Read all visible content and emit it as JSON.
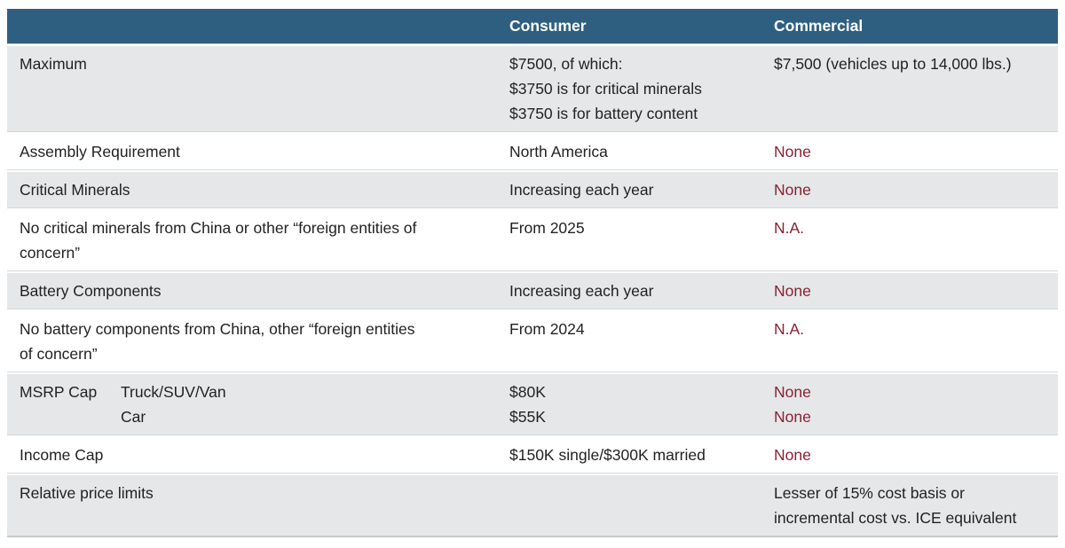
{
  "table": {
    "header": {
      "consumer": "Consumer",
      "commercial": "Commercial"
    },
    "colors": {
      "header_bg": "#2f5f80",
      "header_text": "#ffffff",
      "shaded_row": "#e5e7e9",
      "body_text": "#222222",
      "highlight_text": "#8b2133"
    },
    "rows": [
      {
        "label": "Maximum",
        "consumer": "$7500, of which:\n$3750 is for critical minerals\n$3750 is for battery content",
        "commercial": "$7,500 (vehicles up to 14,000 lbs.)",
        "commercial_style": "dark"
      },
      {
        "label": "Assembly Requirement",
        "consumer": "North America",
        "commercial": "None",
        "commercial_style": "red"
      },
      {
        "label": "Critical Minerals",
        "consumer": "Increasing each year",
        "commercial": "None",
        "commercial_style": "red"
      },
      {
        "label": "No critical minerals from China or other “foreign entities of\nconcern”",
        "consumer": "From 2025",
        "commercial": "N.A.",
        "commercial_style": "red"
      },
      {
        "label": "Battery Components",
        "consumer": "Increasing each year",
        "commercial": "None",
        "commercial_style": "red"
      },
      {
        "label": "No battery components from China, other “foreign entities\nof concern”",
        "consumer": "From 2024",
        "commercial": "N.A.",
        "commercial_style": "red"
      },
      {
        "label": "MSRP Cap",
        "label_sub": "Truck/SUV/Van\nCar",
        "consumer": "$80K\n$55K",
        "commercial": "None\nNone",
        "commercial_style": "red"
      },
      {
        "label": "Income Cap",
        "consumer": "$150K single/$300K married",
        "commercial": "None",
        "commercial_style": "red"
      },
      {
        "label": "Relative price limits",
        "consumer": "",
        "commercial": "Lesser of 15% cost basis or\nincremental cost vs. ICE equivalent",
        "commercial_style": "dark"
      }
    ]
  },
  "chart_data": {
    "type": "table",
    "title": "",
    "columns": [
      "",
      "Consumer",
      "Commercial"
    ],
    "rows": [
      [
        "Maximum",
        "$7500, of which: $3750 is for critical minerals / $3750 is for battery content",
        "$7,500 (vehicles up to 14,000 lbs.)"
      ],
      [
        "Assembly Requirement",
        "North America",
        "None"
      ],
      [
        "Critical Minerals",
        "Increasing each year",
        "None"
      ],
      [
        "No critical minerals from China or other “foreign entities of concern”",
        "From 2025",
        "N.A."
      ],
      [
        "Battery Components",
        "Increasing each year",
        "None"
      ],
      [
        "No battery components from China, other “foreign entities of concern”",
        "From 2024",
        "N.A."
      ],
      [
        "MSRP Cap — Truck/SUV/Van: $80K / Car: $55K",
        "$80K / $55K",
        "None / None"
      ],
      [
        "Income Cap",
        "$150K single/$300K married",
        "None"
      ],
      [
        "Relative price limits",
        "",
        "Lesser of 15% cost basis or incremental cost vs. ICE equivalent"
      ]
    ],
    "layout_hints": {
      "alternating_row_shading": true,
      "header_style": "dark-blue band, white bold text",
      "highlighted_values": [
        "None",
        "N.A."
      ]
    }
  }
}
